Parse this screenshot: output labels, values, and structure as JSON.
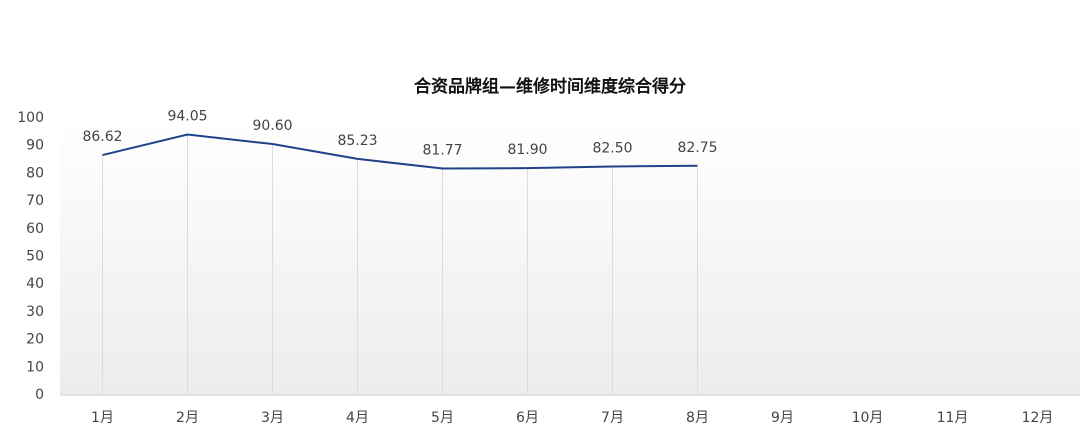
{
  "chart_data": {
    "type": "line",
    "title": "合资品牌组—维修时间维度综合得分",
    "categories": [
      "1月",
      "2月",
      "3月",
      "4月",
      "5月",
      "6月",
      "7月",
      "8月",
      "9月",
      "10月",
      "11月",
      "12月"
    ],
    "series": [
      {
        "name": "综合得分",
        "color": "#1f4388",
        "values": [
          86.62,
          94.05,
          90.6,
          85.23,
          81.77,
          81.9,
          82.5,
          82.75,
          null,
          null,
          null,
          null
        ],
        "value_labels": [
          "86.62",
          "94.05",
          "90.60",
          "85.23",
          "81.77",
          "81.90",
          "82.50",
          "82.75",
          null,
          null,
          null,
          null
        ]
      }
    ],
    "ylim": [
      0,
      100
    ],
    "yticks": [
      0,
      10,
      20,
      30,
      40,
      50,
      60,
      70,
      80,
      90,
      100
    ],
    "drop_lines": true
  }
}
